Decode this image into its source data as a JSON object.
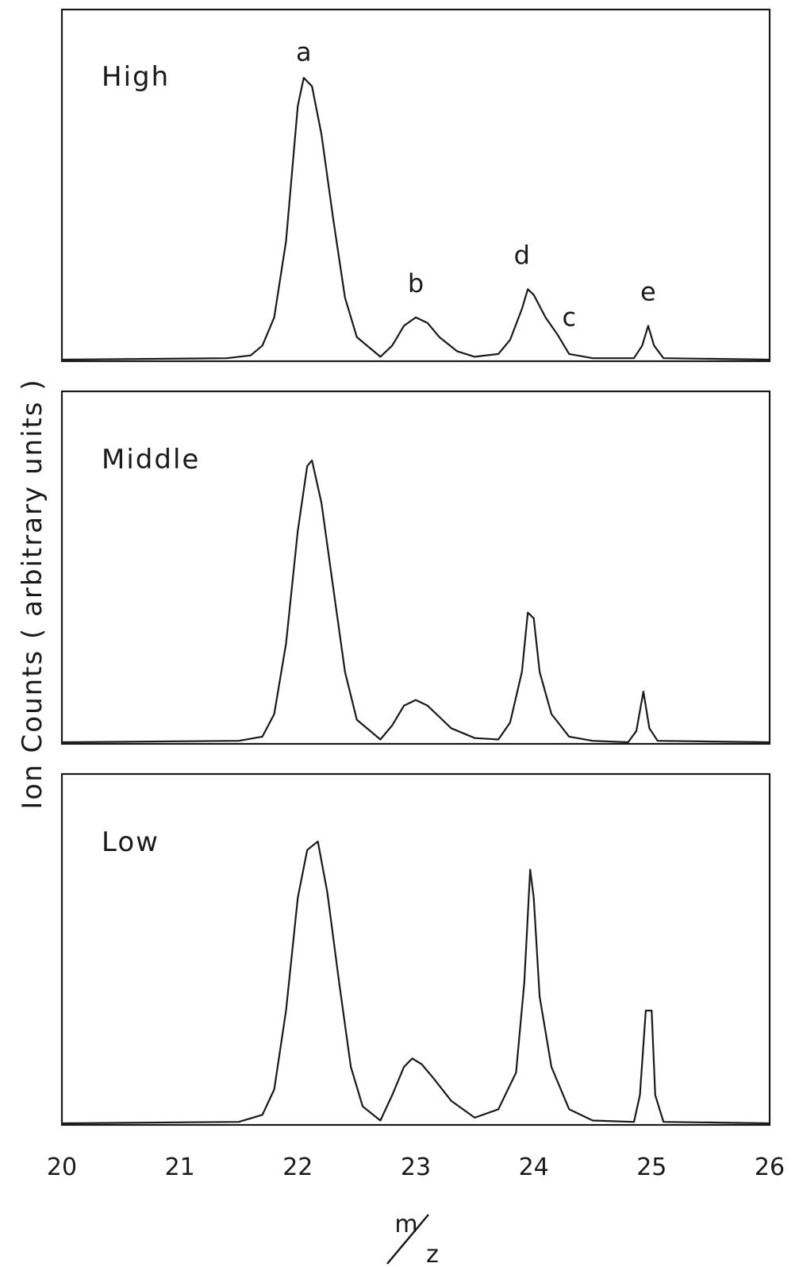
{
  "chart_data": {
    "type": "line",
    "title": "",
    "xlabel": {
      "numerator": "m",
      "denominator": "z"
    },
    "ylabel": "Ion Counts ( arbitrary units )",
    "xlim": [
      20,
      26
    ],
    "x_ticks": [
      "20",
      "21",
      "22",
      "23",
      "24",
      "25",
      "26"
    ],
    "ylim": [
      0,
      1
    ],
    "grid": false,
    "line_color": "#1a1a1a",
    "panels": [
      {
        "name": "High",
        "points": [
          [
            20.0,
            0.0
          ],
          [
            21.4,
            0.005
          ],
          [
            21.6,
            0.015
          ],
          [
            21.7,
            0.05
          ],
          [
            21.8,
            0.15
          ],
          [
            21.9,
            0.42
          ],
          [
            22.0,
            0.9
          ],
          [
            22.05,
            1.0
          ],
          [
            22.12,
            0.97
          ],
          [
            22.2,
            0.8
          ],
          [
            22.3,
            0.5
          ],
          [
            22.4,
            0.22
          ],
          [
            22.5,
            0.08
          ],
          [
            22.7,
            0.01
          ],
          [
            22.8,
            0.05
          ],
          [
            22.9,
            0.12
          ],
          [
            23.0,
            0.15
          ],
          [
            23.1,
            0.13
          ],
          [
            23.2,
            0.08
          ],
          [
            23.35,
            0.03
          ],
          [
            23.5,
            0.01
          ],
          [
            23.7,
            0.02
          ],
          [
            23.8,
            0.07
          ],
          [
            23.9,
            0.18
          ],
          [
            23.95,
            0.25
          ],
          [
            24.0,
            0.23
          ],
          [
            24.1,
            0.15
          ],
          [
            24.2,
            0.09
          ],
          [
            24.3,
            0.02
          ],
          [
            24.5,
            0.005
          ],
          [
            24.85,
            0.005
          ],
          [
            24.92,
            0.05
          ],
          [
            24.97,
            0.12
          ],
          [
            25.02,
            0.05
          ],
          [
            25.1,
            0.005
          ],
          [
            26.0,
            0.0
          ]
        ]
      },
      {
        "name": "Middle",
        "points": [
          [
            20.0,
            0.0
          ],
          [
            21.5,
            0.005
          ],
          [
            21.7,
            0.02
          ],
          [
            21.8,
            0.1
          ],
          [
            21.9,
            0.35
          ],
          [
            22.0,
            0.75
          ],
          [
            22.08,
            0.98
          ],
          [
            22.12,
            1.0
          ],
          [
            22.2,
            0.85
          ],
          [
            22.3,
            0.55
          ],
          [
            22.4,
            0.25
          ],
          [
            22.5,
            0.08
          ],
          [
            22.7,
            0.01
          ],
          [
            22.8,
            0.06
          ],
          [
            22.9,
            0.13
          ],
          [
            23.0,
            0.15
          ],
          [
            23.1,
            0.13
          ],
          [
            23.2,
            0.09
          ],
          [
            23.3,
            0.05
          ],
          [
            23.5,
            0.015
          ],
          [
            23.7,
            0.01
          ],
          [
            23.8,
            0.07
          ],
          [
            23.9,
            0.25
          ],
          [
            23.95,
            0.46
          ],
          [
            24.0,
            0.44
          ],
          [
            24.05,
            0.25
          ],
          [
            24.15,
            0.1
          ],
          [
            24.3,
            0.02
          ],
          [
            24.5,
            0.005
          ],
          [
            24.8,
            0.0
          ],
          [
            24.87,
            0.04
          ],
          [
            24.93,
            0.18
          ],
          [
            24.98,
            0.05
          ],
          [
            25.05,
            0.005
          ],
          [
            26.0,
            0.0
          ]
        ]
      },
      {
        "name": "Low",
        "points": [
          [
            20.0,
            0.0
          ],
          [
            21.5,
            0.005
          ],
          [
            21.7,
            0.03
          ],
          [
            21.8,
            0.12
          ],
          [
            21.9,
            0.4
          ],
          [
            22.0,
            0.8
          ],
          [
            22.08,
            0.97
          ],
          [
            22.17,
            1.0
          ],
          [
            22.25,
            0.82
          ],
          [
            22.35,
            0.5
          ],
          [
            22.45,
            0.2
          ],
          [
            22.55,
            0.06
          ],
          [
            22.7,
            0.01
          ],
          [
            22.8,
            0.1
          ],
          [
            22.9,
            0.2
          ],
          [
            22.97,
            0.23
          ],
          [
            23.05,
            0.21
          ],
          [
            23.15,
            0.16
          ],
          [
            23.3,
            0.08
          ],
          [
            23.5,
            0.02
          ],
          [
            23.7,
            0.05
          ],
          [
            23.85,
            0.18
          ],
          [
            23.92,
            0.5
          ],
          [
            23.97,
            0.9
          ],
          [
            24.0,
            0.8
          ],
          [
            24.05,
            0.45
          ],
          [
            24.15,
            0.2
          ],
          [
            24.3,
            0.05
          ],
          [
            24.5,
            0.01
          ],
          [
            24.85,
            0.005
          ],
          [
            24.9,
            0.1
          ],
          [
            24.95,
            0.4
          ],
          [
            25.0,
            0.4
          ],
          [
            25.03,
            0.1
          ],
          [
            25.1,
            0.005
          ],
          [
            26.0,
            0.0
          ]
        ]
      }
    ],
    "annotations": [
      {
        "text": "a",
        "panel": 0,
        "x": 22.05,
        "y": 1.06
      },
      {
        "text": "b",
        "panel": 0,
        "x": 23.0,
        "y": 0.24
      },
      {
        "text": "d",
        "panel": 0,
        "x": 23.9,
        "y": 0.34
      },
      {
        "text": "c",
        "panel": 0,
        "x": 24.3,
        "y": 0.12
      },
      {
        "text": "e",
        "panel": 0,
        "x": 24.97,
        "y": 0.21
      }
    ]
  }
}
